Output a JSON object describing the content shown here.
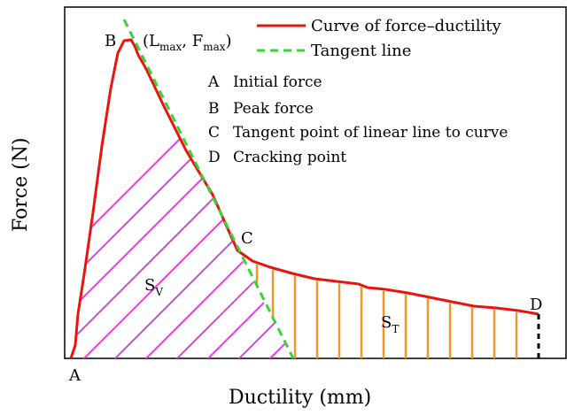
{
  "axes": {
    "xlabel": "Ductility (mm)",
    "ylabel": "Force (N)"
  },
  "legend": [
    {
      "label": "Curve of force–ductility",
      "color": "#e8150f",
      "style": "solid"
    },
    {
      "label": "Tangent line",
      "color": "#3ad23a",
      "style": "dashed"
    }
  ],
  "notes": [
    {
      "key": "A",
      "text": "Initial force"
    },
    {
      "key": "B",
      "text": "Peak force"
    },
    {
      "key": "C",
      "text": "Tangent point of  linear line to  curve"
    },
    {
      "key": "D",
      "text": "Cracking point"
    }
  ],
  "points": {
    "A": "A",
    "B": "B",
    "C": "C",
    "D": "D"
  },
  "peak_label": {
    "open": "(L",
    "sub1": "max",
    "mid": ", F",
    "sub2": "max",
    "close": ")"
  },
  "areas": {
    "sv": {
      "main": "S",
      "sub": "V",
      "color": "#e040e0"
    },
    "st": {
      "main": "S",
      "sub": "T",
      "color": "#f0962a"
    }
  }
}
